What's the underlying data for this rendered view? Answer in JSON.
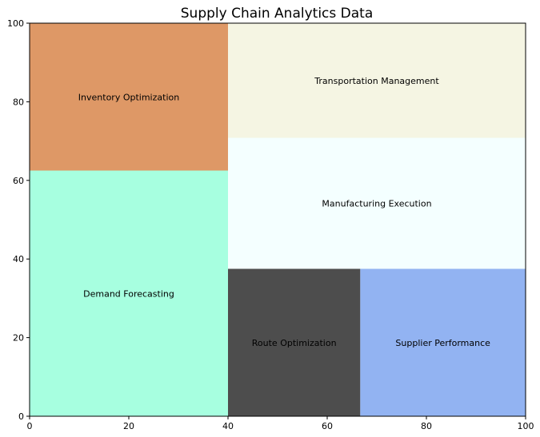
{
  "chart_data": {
    "type": "treemap",
    "title": "Supply Chain Analytics Data",
    "xlim": [
      0,
      100
    ],
    "ylim": [
      0,
      100
    ],
    "xticks": [
      0,
      20,
      40,
      60,
      80,
      100
    ],
    "yticks": [
      0,
      20,
      40,
      60,
      80,
      100
    ],
    "rectangles": [
      {
        "label": "Demand Forecasting",
        "x": 0,
        "y": 0,
        "dx": 40,
        "dy": 62.5,
        "color": "#a7ffe0"
      },
      {
        "label": "Inventory Optimization",
        "x": 0,
        "y": 62.5,
        "dx": 40,
        "dy": 37.5,
        "color": "#de9866"
      },
      {
        "label": "Route Optimization",
        "x": 40,
        "y": 0,
        "dx": 26.67,
        "dy": 37.5,
        "color": "#4d4d4d"
      },
      {
        "label": "Supplier Performance",
        "x": 66.67,
        "y": 0,
        "dx": 33.33,
        "dy": 37.5,
        "color": "#92b3f2"
      },
      {
        "label": "Manufacturing Execution",
        "x": 40,
        "y": 37.5,
        "dx": 60,
        "dy": 33.33,
        "color": "#f4ffff"
      },
      {
        "label": "Transportation Management",
        "x": 40,
        "y": 70.83,
        "dx": 60,
        "dy": 29.17,
        "color": "#f5f5e3"
      }
    ]
  }
}
